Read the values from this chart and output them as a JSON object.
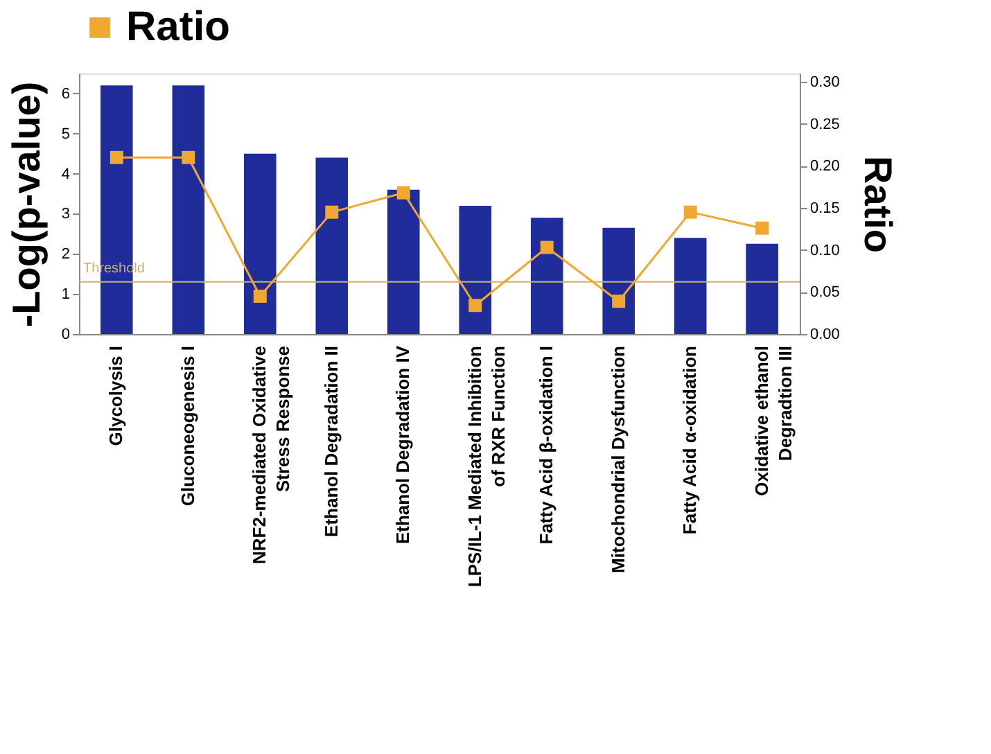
{
  "chart_data": {
    "type": "bar",
    "categories": [
      "Glycolysis I",
      "Gluconeogenesis I",
      "NRF2-mediated Oxidative\nStress Response",
      "Ethanol Degradation II",
      "Ethanol Degradation IV",
      "LPS/IL-1 Mediated Inhibition\nof RXR Function",
      "Fatty Acid β-oxidation I",
      "Mitochondrial Dysfunction",
      "Fatty Acid α-oxidation",
      "Oxidative ethanol\nDegradtion III"
    ],
    "series": [
      {
        "color": "#1f2c99",
        "values": [
          6.2,
          6.2,
          4.5,
          4.4,
          3.6,
          3.2,
          2.9,
          2.65,
          2.4,
          2.25
        ]
      },
      {
        "type": "line",
        "name": "Ratio",
        "axis": "y2",
        "color": "#f0a830",
        "values": [
          0.21,
          0.21,
          0.045,
          0.145,
          0.168,
          0.034,
          0.103,
          0.039,
          0.145,
          0.126
        ]
      }
    ],
    "ylabel": "-Log(p-value)",
    "y2label": "Ratio",
    "ylim": [
      0,
      6.5
    ],
    "yticks": [
      0,
      1,
      2,
      3,
      4,
      5,
      6
    ],
    "y2lim": [
      0,
      0.31
    ],
    "y2ticks": [
      {
        "value": 0,
        "label": "0.00"
      },
      {
        "value": 0.05,
        "label": "0.05"
      },
      {
        "value": 0.1,
        "label": "0.10"
      },
      {
        "value": 0.15,
        "label": "0.15"
      },
      {
        "value": 0.2,
        "label": "0.20"
      },
      {
        "value": 0.25,
        "label": "0.25"
      },
      {
        "value": 0.3,
        "label": "0.30"
      }
    ],
    "ref_lines": [
      {
        "axis": "y",
        "value": 1.3,
        "label": "Threshold",
        "color": "#c8b46a"
      }
    ],
    "marker": "square",
    "legend": "top",
    "grid": false
  }
}
